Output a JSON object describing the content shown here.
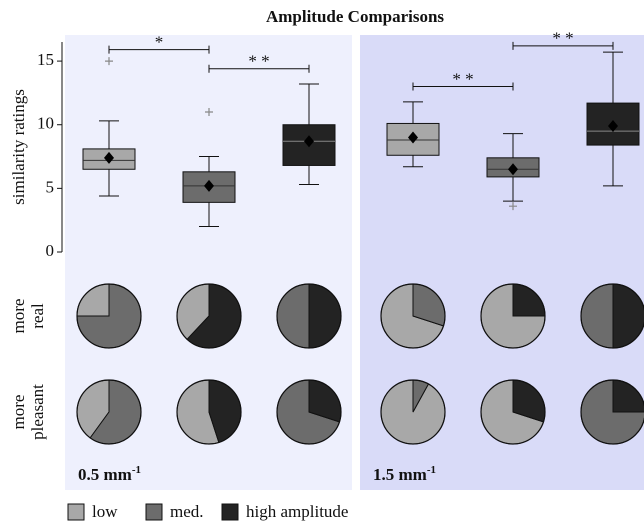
{
  "chart_data": {
    "type": "box",
    "title": "Amplitude Comparisons",
    "y_label": "similarity ratings",
    "ylim": [
      0,
      16.5
    ],
    "yticks": [
      0,
      5,
      10,
      15
    ],
    "row_labels": [
      [
        "more",
        "real"
      ],
      [
        "more",
        "pleasant"
      ]
    ],
    "legend": [
      {
        "name": "low",
        "color": "#a8a8a8"
      },
      {
        "name": "med.",
        "color": "#6c6c6c"
      },
      {
        "name": "high amplitude",
        "color": "#232323"
      }
    ],
    "panels": [
      {
        "label": "0.5 mm",
        "label_sup": "-1",
        "background": "#eef0fd",
        "boxes": [
          {
            "group": 0,
            "q1": 6.5,
            "median": 7.2,
            "q3": 8.1,
            "whisker_low": 4.4,
            "whisker_high": 10.3,
            "mean": 7.4,
            "outliers": [
              15
            ]
          },
          {
            "group": 1,
            "q1": 3.9,
            "median": 5.2,
            "q3": 6.3,
            "whisker_low": 2.0,
            "whisker_high": 7.5,
            "mean": 5.2,
            "outliers": [
              11
            ]
          },
          {
            "group": 2,
            "q1": 6.8,
            "median": 8.7,
            "q3": 10.0,
            "whisker_low": 5.3,
            "whisker_high": 13.2,
            "mean": 8.7,
            "outliers": []
          }
        ],
        "brackets": [
          {
            "from": 0,
            "to": 1,
            "y": 15.9,
            "label": "*"
          },
          {
            "from": 1,
            "to": 2,
            "y": 14.4,
            "label": "* *"
          }
        ],
        "pies": [
          [
            [
              {
                "group": 0,
                "value": 25
              },
              {
                "group": 1,
                "value": 75
              }
            ],
            [
              {
                "group": 0,
                "value": 38
              },
              {
                "group": 2,
                "value": 62
              }
            ],
            [
              {
                "group": 1,
                "value": 50
              },
              {
                "group": 2,
                "value": 50
              }
            ]
          ],
          [
            [
              {
                "group": 0,
                "value": 40
              },
              {
                "group": 1,
                "value": 60
              }
            ],
            [
              {
                "group": 0,
                "value": 55
              },
              {
                "group": 2,
                "value": 45
              }
            ],
            [
              {
                "group": 1,
                "value": 70
              },
              {
                "group": 2,
                "value": 30
              }
            ]
          ]
        ]
      },
      {
        "label": "1.5 mm",
        "label_sup": "-1",
        "background": "#d9dbf8",
        "boxes": [
          {
            "group": 0,
            "q1": 7.6,
            "median": 8.8,
            "q3": 10.1,
            "whisker_low": 6.7,
            "whisker_high": 11.8,
            "mean": 9.0,
            "outliers": []
          },
          {
            "group": 1,
            "q1": 5.9,
            "median": 6.5,
            "q3": 7.4,
            "whisker_low": 4.0,
            "whisker_high": 9.3,
            "mean": 6.5,
            "outliers": [
              3.6
            ]
          },
          {
            "group": 2,
            "q1": 8.4,
            "median": 9.5,
            "q3": 11.7,
            "whisker_low": 5.2,
            "whisker_high": 15.7,
            "mean": 9.9,
            "outliers": []
          }
        ],
        "brackets": [
          {
            "from": 0,
            "to": 1,
            "y": 13.0,
            "label": "* *"
          },
          {
            "from": 1,
            "to": 2,
            "y": 16.2,
            "label": "* *"
          }
        ],
        "pies": [
          [
            [
              {
                "group": 0,
                "value": 70
              },
              {
                "group": 1,
                "value": 30
              }
            ],
            [
              {
                "group": 0,
                "value": 75
              },
              {
                "group": 2,
                "value": 25
              }
            ],
            [
              {
                "group": 1,
                "value": 50
              },
              {
                "group": 2,
                "value": 50
              }
            ]
          ],
          [
            [
              {
                "group": 0,
                "value": 92
              },
              {
                "group": 1,
                "value": 8
              }
            ],
            [
              {
                "group": 0,
                "value": 70
              },
              {
                "group": 2,
                "value": 30
              }
            ],
            [
              {
                "group": 1,
                "value": 75
              },
              {
                "group": 2,
                "value": 25
              }
            ]
          ]
        ]
      }
    ]
  }
}
